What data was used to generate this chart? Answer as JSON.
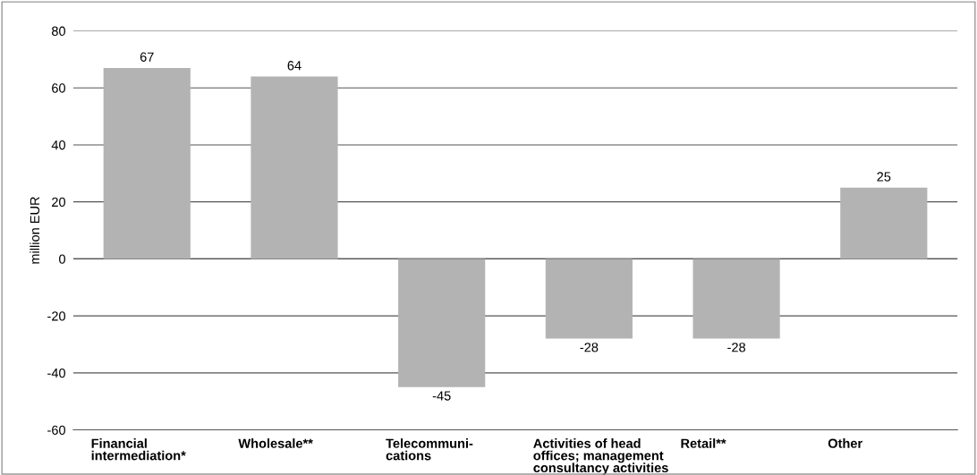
{
  "chart_data": {
    "type": "bar",
    "ylabel": "million EUR",
    "categories": [
      "Financial\nintermediation*",
      "Wholesale**",
      "Telecommuni-\ncations",
      "Activities of head\noffices; management\nconsultancy activities",
      "Retail**",
      "Other"
    ],
    "values": [
      67,
      64,
      -45,
      -28,
      -28,
      25
    ],
    "color": "#b3b3b3",
    "ylim": [
      -60,
      80
    ],
    "yticks": [
      -60,
      -40,
      -20,
      0,
      20,
      40,
      60,
      80
    ],
    "grid": "y",
    "data_labels": true
  }
}
